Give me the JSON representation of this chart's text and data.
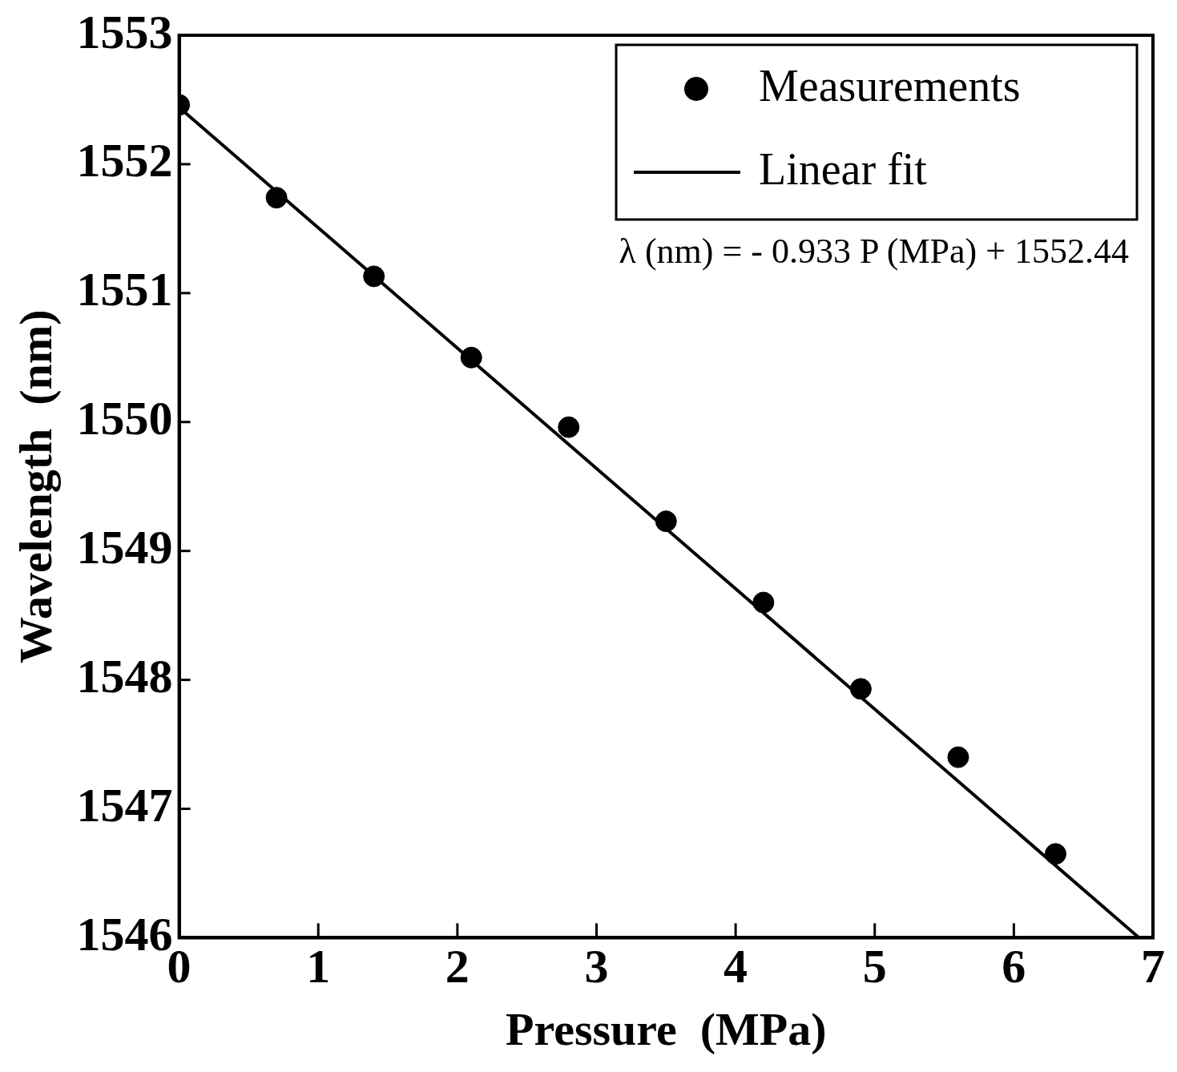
{
  "chart_data": {
    "type": "scatter",
    "xlabel": "Pressure  (MPa)",
    "ylabel": "Wavelength  (nm)",
    "xlim": [
      0,
      7
    ],
    "xticks": [
      0,
      1,
      2,
      3,
      4,
      5,
      6,
      7
    ],
    "ylim": [
      1546,
      1553
    ],
    "yticks": [
      1546,
      1547,
      1548,
      1549,
      1550,
      1551,
      1552,
      1553
    ],
    "grid": false,
    "legend": "top right",
    "annotations": [
      "λ (nm) = - 0.933 P (MPa) + 1552.44"
    ],
    "series": [
      {
        "name": "Measurements",
        "type": "scatter",
        "marker": "circle",
        "color": "#000000",
        "x": [
          0,
          0.7,
          1.4,
          2.1,
          2.8,
          3.5,
          4.2,
          4.9,
          5.6,
          6.3
        ],
        "values": [
          1552.46,
          1551.74,
          1551.13,
          1550.5,
          1549.96,
          1549.23,
          1548.6,
          1547.93,
          1547.4,
          1546.65
        ]
      },
      {
        "name": "Linear fit",
        "type": "line",
        "marker": "none",
        "line_style": "solid",
        "color": "#000000",
        "x": [
          0,
          6.9
        ],
        "values": [
          1552.44,
          1546.0
        ]
      }
    ]
  }
}
